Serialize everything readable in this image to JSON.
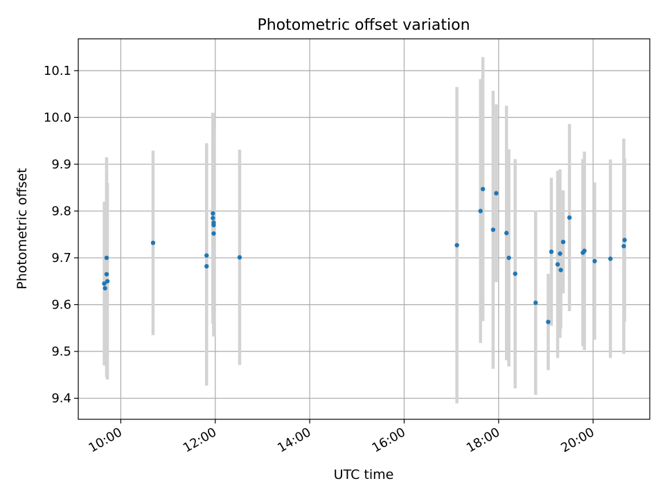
{
  "chart_data": {
    "type": "scatter",
    "title": "Photometric offset variation",
    "xlabel": "UTC time",
    "ylabel": "Photometric offset",
    "xlim": [
      "09:06",
      "21:12"
    ],
    "ylim": [
      9.355,
      10.168
    ],
    "xticks": [
      "10:00",
      "12:00",
      "14:00",
      "16:00",
      "18:00",
      "20:00"
    ],
    "yticks": [
      9.4,
      9.5,
      9.6,
      9.7,
      9.8,
      9.9,
      10.0,
      10.1
    ],
    "ytick_labels": [
      "9.4",
      "9.5",
      "9.6",
      "9.7",
      "9.8",
      "9.9",
      "10.0",
      "10.1"
    ],
    "grid": true,
    "marker_color": "#1f77b4",
    "errorbar_color": "#d3d3d3",
    "series": [
      {
        "points": [
          {
            "t": "09:39",
            "y": 9.645,
            "err": 0.175
          },
          {
            "t": "09:40",
            "y": 9.635,
            "err": 0.165
          },
          {
            "t": "09:42",
            "y": 9.7,
            "err": 0.215
          },
          {
            "t": "09:42",
            "y": 9.665,
            "err": 0.22
          },
          {
            "t": "09:43",
            "y": 9.65,
            "err": 0.21
          },
          {
            "t": "10:41",
            "y": 9.732,
            "err": 0.197
          },
          {
            "t": "11:49",
            "y": 9.705,
            "err": 0.24
          },
          {
            "t": "11:49",
            "y": 9.682,
            "err": 0.255
          },
          {
            "t": "11:57",
            "y": 9.795,
            "err": 0.215
          },
          {
            "t": "11:57",
            "y": 9.785,
            "err": 0.225
          },
          {
            "t": "11:58",
            "y": 9.775,
            "err": 0.23
          },
          {
            "t": "11:58",
            "y": 9.77,
            "err": 0.21
          },
          {
            "t": "11:58",
            "y": 9.752,
            "err": 0.22
          },
          {
            "t": "12:31",
            "y": 9.701,
            "err": 0.23
          },
          {
            "t": "17:07",
            "y": 9.727,
            "err": 0.338
          },
          {
            "t": "17:37",
            "y": 9.8,
            "err": 0.282
          },
          {
            "t": "17:40",
            "y": 9.847,
            "err": 0.282
          },
          {
            "t": "17:53",
            "y": 9.76,
            "err": 0.297
          },
          {
            "t": "17:57",
            "y": 9.838,
            "err": 0.19
          },
          {
            "t": "18:10",
            "y": 9.753,
            "err": 0.272
          },
          {
            "t": "18:13",
            "y": 9.7,
            "err": 0.232
          },
          {
            "t": "18:21",
            "y": 9.666,
            "err": 0.245
          },
          {
            "t": "18:47",
            "y": 9.604,
            "err": 0.197
          },
          {
            "t": "19:03",
            "y": 9.563,
            "err": 0.103
          },
          {
            "t": "19:07",
            "y": 9.713,
            "err": 0.158
          },
          {
            "t": "19:15",
            "y": 9.686,
            "err": 0.2
          },
          {
            "t": "19:18",
            "y": 9.709,
            "err": 0.18
          },
          {
            "t": "19:19",
            "y": 9.674,
            "err": 0.125
          },
          {
            "t": "19:22",
            "y": 9.734,
            "err": 0.11
          },
          {
            "t": "19:30",
            "y": 9.786,
            "err": 0.2
          },
          {
            "t": "19:47",
            "y": 9.711,
            "err": 0.2
          },
          {
            "t": "19:49",
            "y": 9.715,
            "err": 0.212
          },
          {
            "t": "20:02",
            "y": 9.693,
            "err": 0.168
          },
          {
            "t": "20:22",
            "y": 9.698,
            "err": 0.212
          },
          {
            "t": "20:39",
            "y": 9.725,
            "err": 0.23
          },
          {
            "t": "20:40",
            "y": 9.738,
            "err": 0.175
          }
        ]
      }
    ]
  }
}
